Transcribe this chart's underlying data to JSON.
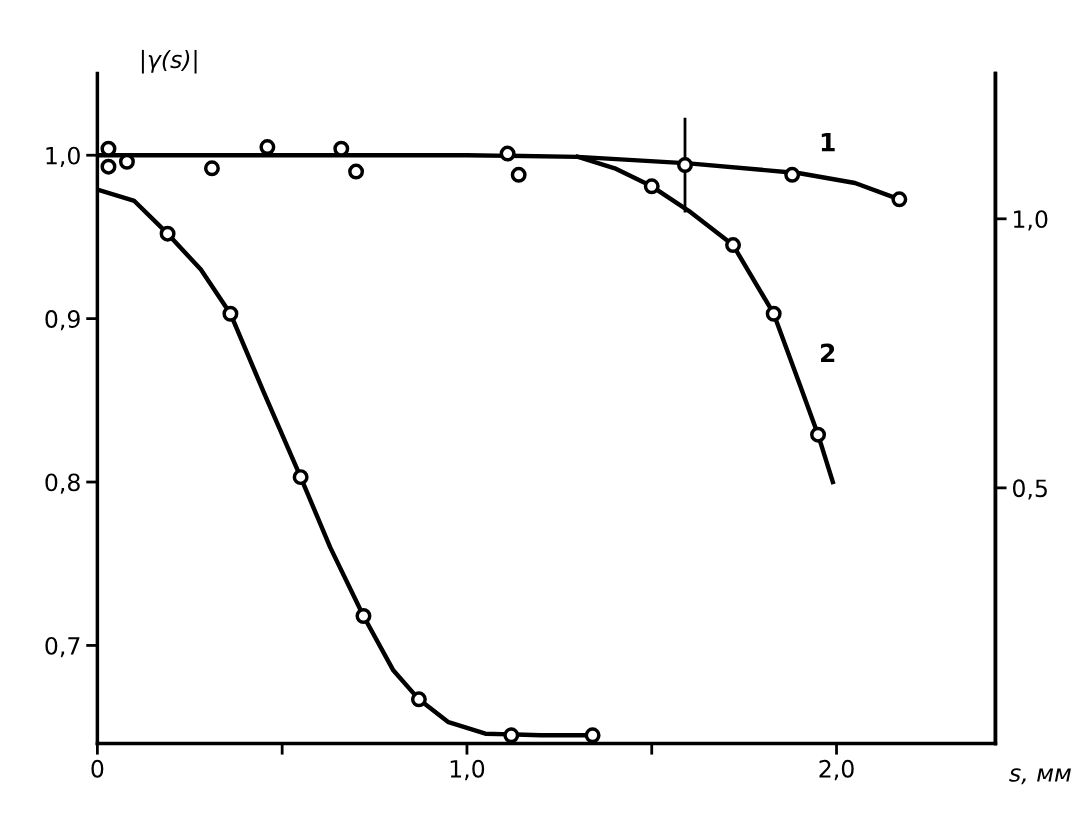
{
  "chart_data": {
    "type": "line",
    "xlabel": "s, мм",
    "ylabel": "|γ(s)|",
    "xlim": [
      0,
      2.43
    ],
    "ylim": [
      0.64,
      1.05
    ],
    "y2lim": [
      0.025,
      1.27
    ],
    "xticks": [
      0,
      {
        "value": 0.5,
        "label": null
      },
      {
        "value": 1.0,
        "label": "1,0"
      },
      {
        "value": 1.5,
        "label": null
      },
      {
        "value": 2.0,
        "label": "2,0"
      }
    ],
    "yticks": [
      {
        "value": 0.7,
        "label": "0,7"
      },
      {
        "value": 0.8,
        "label": "0,8"
      },
      {
        "value": 0.9,
        "label": "0,9"
      },
      {
        "value": 1.0,
        "label": "1,0"
      }
    ],
    "y2ticks": [
      {
        "value": 0.5,
        "label": "0,5"
      },
      {
        "value": 1.0,
        "label": "1,0"
      }
    ],
    "grid": false,
    "legend": false,
    "series": [
      {
        "name": "1",
        "color": "#000000",
        "marker": "none",
        "x": [
          0,
          0.5,
          1.0,
          1.3,
          1.6,
          1.9,
          2.05,
          2.17
        ],
        "values": [
          1.0,
          1.0,
          1.0,
          0.999,
          0.995,
          0.989,
          0.983,
          0.973
        ]
      },
      {
        "name": "2",
        "color": "#000000",
        "marker": "none",
        "x": [
          1.3,
          1.4,
          1.5,
          1.6,
          1.72,
          1.83,
          1.9,
          1.95,
          1.99
        ],
        "values": [
          0.999,
          0.992,
          0.981,
          0.966,
          0.945,
          0.903,
          0.86,
          0.829,
          0.8
        ]
      },
      {
        "color": "#000000",
        "marker": "none",
        "x": [
          0,
          0.1,
          0.19,
          0.28,
          0.36,
          0.45,
          0.55,
          0.63,
          0.72,
          0.8,
          0.87,
          0.95,
          1.05,
          1.2,
          1.34
        ],
        "values": [
          0.979,
          0.972,
          0.952,
          0.93,
          0.903,
          0.855,
          0.803,
          0.76,
          0.718,
          0.685,
          0.667,
          0.653,
          0.646,
          0.645,
          0.645
        ]
      },
      {
        "type": "scatter",
        "color": "#000000",
        "marker": "circle",
        "x": [
          0.03,
          0.03,
          0.08,
          0.31,
          0.46,
          0.66,
          0.7,
          1.11,
          1.14,
          1.59,
          1.88,
          2.17
        ],
        "values": [
          1.004,
          0.993,
          0.996,
          0.992,
          1.005,
          1.004,
          0.99,
          1.001,
          0.988,
          0.994,
          0.988,
          0.973
        ],
        "errors": [
          null,
          null,
          null,
          null,
          null,
          null,
          null,
          null,
          null,
          0.029,
          null,
          null
        ]
      },
      {
        "type": "scatter",
        "color": "#000000",
        "marker": "circle",
        "x": [
          1.5,
          1.72,
          1.83,
          1.95
        ],
        "values": [
          0.981,
          0.945,
          0.903,
          0.829
        ]
      },
      {
        "type": "scatter",
        "color": "#000000",
        "marker": "circle",
        "x": [
          0.19,
          0.36,
          0.55,
          0.72,
          0.87,
          1.12,
          1.34
        ],
        "values": [
          0.952,
          0.903,
          0.803,
          0.718,
          0.667,
          0.645,
          0.645
        ]
      }
    ]
  }
}
